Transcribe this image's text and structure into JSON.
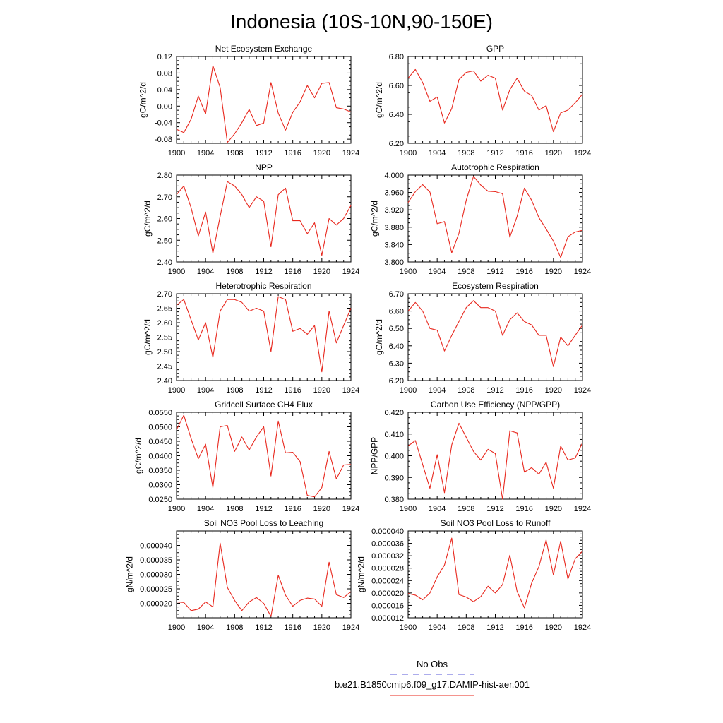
{
  "title": "Indonesia (10S-10N,90-150E)",
  "legend": {
    "obs_label": "No Obs",
    "obs_color": "#5a5ad8",
    "model_label": "b.e21.B1850cmip6.f09_g17.DAMIP-hist-aer.001",
    "model_color": "#e8281e"
  },
  "chart_data": [
    {
      "type": "line",
      "title": "Net Ecosystem Exchange",
      "ylabel": "gC/m^2/d",
      "xlim": [
        1900,
        1924
      ],
      "xticks": [
        "1900",
        "1904",
        "1908",
        "1912",
        "1916",
        "1920",
        "1924"
      ],
      "ylim": [
        -0.09,
        0.12
      ],
      "yticks": [
        "-0.08",
        "-0.04",
        "0.00",
        "0.04",
        "0.08",
        "0.12"
      ],
      "x": [
        1900,
        1901,
        1902,
        1903,
        1904,
        1905,
        1906,
        1907,
        1908,
        1909,
        1910,
        1911,
        1912,
        1913,
        1914,
        1915,
        1916,
        1917,
        1918,
        1919,
        1920,
        1921,
        1922,
        1923,
        1924
      ],
      "values": [
        -0.056,
        -0.064,
        -0.032,
        0.024,
        -0.019,
        0.098,
        0.045,
        -0.088,
        -0.067,
        -0.04,
        -0.008,
        -0.047,
        -0.041,
        0.057,
        -0.017,
        -0.058,
        -0.015,
        0.01,
        0.05,
        0.02,
        0.055,
        0.057,
        -0.004,
        -0.007,
        -0.014
      ],
      "series_name": "b.e21.B1850cmip6.f09_g17.DAMIP-hist-aer.001"
    },
    {
      "type": "line",
      "title": "GPP",
      "ylabel": "gC/m^2/d",
      "xlim": [
        1900,
        1924
      ],
      "xticks": [
        "1900",
        "1904",
        "1908",
        "1912",
        "1916",
        "1920",
        "1924"
      ],
      "ylim": [
        6.2,
        6.8
      ],
      "yticks": [
        "6.20",
        "6.40",
        "6.60",
        "6.80"
      ],
      "x": [
        1900,
        1901,
        1902,
        1903,
        1904,
        1905,
        1906,
        1907,
        1908,
        1909,
        1910,
        1911,
        1912,
        1913,
        1914,
        1915,
        1916,
        1917,
        1918,
        1919,
        1920,
        1921,
        1922,
        1923,
        1924
      ],
      "values": [
        6.65,
        6.71,
        6.62,
        6.49,
        6.52,
        6.34,
        6.44,
        6.64,
        6.69,
        6.7,
        6.63,
        6.67,
        6.65,
        6.43,
        6.57,
        6.65,
        6.56,
        6.53,
        6.43,
        6.46,
        6.28,
        6.41,
        6.43,
        6.48,
        6.54
      ],
      "series_name": "b.e21.B1850cmip6.f09_g17.DAMIP-hist-aer.001"
    },
    {
      "type": "line",
      "title": "NPP",
      "ylabel": "gC/m^2/d",
      "xlim": [
        1900,
        1924
      ],
      "xticks": [
        "1900",
        "1904",
        "1908",
        "1912",
        "1916",
        "1920",
        "1924"
      ],
      "ylim": [
        2.4,
        2.8
      ],
      "yticks": [
        "2.40",
        "2.50",
        "2.60",
        "2.70",
        "2.80"
      ],
      "x": [
        1900,
        1901,
        1902,
        1903,
        1904,
        1905,
        1906,
        1907,
        1908,
        1909,
        1910,
        1911,
        1912,
        1913,
        1914,
        1915,
        1916,
        1917,
        1918,
        1919,
        1920,
        1921,
        1922,
        1923,
        1924
      ],
      "values": [
        2.71,
        2.75,
        2.65,
        2.52,
        2.63,
        2.44,
        2.61,
        2.77,
        2.75,
        2.71,
        2.65,
        2.7,
        2.68,
        2.47,
        2.71,
        2.74,
        2.59,
        2.59,
        2.53,
        2.58,
        2.43,
        2.6,
        2.57,
        2.6,
        2.66
      ],
      "series_name": "b.e21.B1850cmip6.f09_g17.DAMIP-hist-aer.001"
    },
    {
      "type": "line",
      "title": "Autotrophic Respiration",
      "ylabel": "gC/m^2/d",
      "xlim": [
        1900,
        1924
      ],
      "xticks": [
        "1900",
        "1904",
        "1908",
        "1912",
        "1916",
        "1920",
        "1924"
      ],
      "ylim": [
        3.8,
        4.0
      ],
      "yticks": [
        "3.800",
        "3.840",
        "3.880",
        "3.920",
        "3.960",
        "4.000"
      ],
      "x": [
        1900,
        1901,
        1902,
        1903,
        1904,
        1905,
        1906,
        1907,
        1908,
        1909,
        1910,
        1911,
        1912,
        1913,
        1914,
        1915,
        1916,
        1917,
        1918,
        1919,
        1920,
        1921,
        1922,
        1923,
        1924
      ],
      "values": [
        3.937,
        3.962,
        3.978,
        3.961,
        3.888,
        3.893,
        3.821,
        3.866,
        3.942,
        3.997,
        3.977,
        3.963,
        3.962,
        3.957,
        3.857,
        3.905,
        3.97,
        3.942,
        3.902,
        3.876,
        3.848,
        3.81,
        3.858,
        3.869,
        3.873
      ],
      "series_name": "b.e21.B1850cmip6.f09_g17.DAMIP-hist-aer.001"
    },
    {
      "type": "line",
      "title": "Heterotrophic Respiration",
      "ylabel": "gC/m^2/d",
      "xlim": [
        1900,
        1924
      ],
      "xticks": [
        "1900",
        "1904",
        "1908",
        "1912",
        "1916",
        "1920",
        "1924"
      ],
      "ylim": [
        2.4,
        2.7
      ],
      "yticks": [
        "2.40",
        "2.45",
        "2.50",
        "2.55",
        "2.60",
        "2.65",
        "2.70"
      ],
      "x": [
        1900,
        1901,
        1902,
        1903,
        1904,
        1905,
        1906,
        1907,
        1908,
        1909,
        1910,
        1911,
        1912,
        1913,
        1914,
        1915,
        1916,
        1917,
        1918,
        1919,
        1920,
        1921,
        1922,
        1923,
        1924
      ],
      "values": [
        2.66,
        2.68,
        2.61,
        2.54,
        2.6,
        2.48,
        2.64,
        2.68,
        2.68,
        2.67,
        2.64,
        2.65,
        2.64,
        2.5,
        2.69,
        2.68,
        2.57,
        2.58,
        2.56,
        2.59,
        2.43,
        2.64,
        2.53,
        2.59,
        2.65
      ],
      "series_name": "b.e21.B1850cmip6.f09_g17.DAMIP-hist-aer.001"
    },
    {
      "type": "line",
      "title": "Ecosystem Respiration",
      "ylabel": "gC/m^2/d",
      "xlim": [
        1900,
        1924
      ],
      "xticks": [
        "1900",
        "1904",
        "1908",
        "1912",
        "1916",
        "1920",
        "1924"
      ],
      "ylim": [
        6.2,
        6.7
      ],
      "yticks": [
        "6.20",
        "6.30",
        "6.40",
        "6.50",
        "6.60",
        "6.70"
      ],
      "x": [
        1900,
        1901,
        1902,
        1903,
        1904,
        1905,
        1906,
        1907,
        1908,
        1909,
        1910,
        1911,
        1912,
        1913,
        1914,
        1915,
        1916,
        1917,
        1918,
        1919,
        1920,
        1921,
        1922,
        1923,
        1924
      ],
      "values": [
        6.6,
        6.65,
        6.6,
        6.5,
        6.49,
        6.37,
        6.46,
        6.54,
        6.62,
        6.66,
        6.62,
        6.62,
        6.6,
        6.46,
        6.55,
        6.59,
        6.54,
        6.52,
        6.46,
        6.46,
        6.28,
        6.45,
        6.4,
        6.46,
        6.52
      ],
      "series_name": "b.e21.B1850cmip6.f09_g17.DAMIP-hist-aer.001"
    },
    {
      "type": "line",
      "title": "Gridcell Surface CH4 Flux",
      "ylabel": "gC/m^2/d",
      "xlim": [
        1900,
        1924
      ],
      "xticks": [
        "1900",
        "1904",
        "1908",
        "1912",
        "1916",
        "1920",
        "1924"
      ],
      "ylim": [
        0.025,
        0.055
      ],
      "yticks": [
        "0.0250",
        "0.0300",
        "0.0350",
        "0.0400",
        "0.0450",
        "0.0500",
        "0.0550"
      ],
      "x": [
        1900,
        1901,
        1902,
        1903,
        1904,
        1905,
        1906,
        1907,
        1908,
        1909,
        1910,
        1911,
        1912,
        1913,
        1914,
        1915,
        1916,
        1917,
        1918,
        1919,
        1920,
        1921,
        1922,
        1923,
        1924
      ],
      "values": [
        0.049,
        0.054,
        0.046,
        0.039,
        0.044,
        0.029,
        0.05,
        0.0505,
        0.0415,
        0.0465,
        0.042,
        0.0465,
        0.05,
        0.033,
        0.052,
        0.041,
        0.0412,
        0.038,
        0.0263,
        0.0258,
        0.029,
        0.0415,
        0.032,
        0.0368,
        0.037
      ],
      "series_name": "b.e21.B1850cmip6.f09_g17.DAMIP-hist-aer.001"
    },
    {
      "type": "line",
      "title": "Carbon Use Efficiency (NPP/GPP)",
      "ylabel": "NPP/GPP",
      "xlim": [
        1900,
        1924
      ],
      "xticks": [
        "1900",
        "1904",
        "1908",
        "1912",
        "1916",
        "1920",
        "1924"
      ],
      "ylim": [
        0.38,
        0.42
      ],
      "yticks": [
        "0.380",
        "0.390",
        "0.400",
        "0.410",
        "0.420"
      ],
      "x": [
        1900,
        1901,
        1902,
        1903,
        1904,
        1905,
        1906,
        1907,
        1908,
        1909,
        1910,
        1911,
        1912,
        1913,
        1914,
        1915,
        1916,
        1917,
        1918,
        1919,
        1920,
        1921,
        1922,
        1923,
        1924
      ],
      "values": [
        0.4045,
        0.407,
        0.396,
        0.385,
        0.4005,
        0.383,
        0.405,
        0.415,
        0.4085,
        0.402,
        0.398,
        0.403,
        0.401,
        0.38,
        0.4115,
        0.4105,
        0.3925,
        0.3945,
        0.3915,
        0.397,
        0.385,
        0.4045,
        0.398,
        0.399,
        0.406
      ],
      "series_name": "b.e21.B1850cmip6.f09_g17.DAMIP-hist-aer.001"
    },
    {
      "type": "line",
      "title": "Soil NO3 Pool Loss to Leaching",
      "ylabel": "gN/m^2/d",
      "xlim": [
        1900,
        1924
      ],
      "xticks": [
        "1900",
        "1904",
        "1908",
        "1912",
        "1916",
        "1920",
        "1924"
      ],
      "ylim": [
        1.5e-05,
        4.5e-05
      ],
      "yticks": [
        "0.000020",
        "0.000025",
        "0.000030",
        "0.000035",
        "0.000040"
      ],
      "x": [
        1900,
        1901,
        1902,
        1903,
        1904,
        1905,
        1906,
        1907,
        1908,
        1909,
        1910,
        1911,
        1912,
        1913,
        1914,
        1915,
        1916,
        1917,
        1918,
        1919,
        1920,
        1921,
        1922,
        1923,
        1924
      ],
      "values": [
        2.05e-05,
        2.03e-05,
        1.75e-05,
        1.8e-05,
        2.05e-05,
        1.88e-05,
        4.08e-05,
        2.55e-05,
        2.1e-05,
        1.75e-05,
        2.05e-05,
        2.2e-05,
        2e-05,
        1.55e-05,
        2.97e-05,
        2.28e-05,
        1.9e-05,
        2.1e-05,
        2.18e-05,
        2.15e-05,
        1.9e-05,
        3.42e-05,
        2.3e-05,
        2.2e-05,
        2.4e-05
      ],
      "series_name": "b.e21.B1850cmip6.f09_g17.DAMIP-hist-aer.001"
    },
    {
      "type": "line",
      "title": "Soil NO3 Pool Loss to Runoff",
      "ylabel": "gN/m^2/d",
      "xlim": [
        1900,
        1924
      ],
      "xticks": [
        "1900",
        "1904",
        "1908",
        "1912",
        "1916",
        "1920",
        "1924"
      ],
      "ylim": [
        1.2e-05,
        4e-05
      ],
      "yticks": [
        "0.000012",
        "0.000016",
        "0.000020",
        "0.000024",
        "0.000028",
        "0.000032",
        "0.000036",
        "0.000040"
      ],
      "x": [
        1900,
        1901,
        1902,
        1903,
        1904,
        1905,
        1906,
        1907,
        1908,
        1909,
        1910,
        1911,
        1912,
        1913,
        1914,
        1915,
        1916,
        1917,
        1918,
        1919,
        1920,
        1921,
        1922,
        1923,
        1924
      ],
      "values": [
        1.98e-05,
        1.93e-05,
        1.78e-05,
        2e-05,
        2.52e-05,
        2.9e-05,
        3.77e-05,
        1.95e-05,
        1.87e-05,
        1.72e-05,
        1.88e-05,
        2.22e-05,
        2e-05,
        2.27e-05,
        3.22e-05,
        2.05e-05,
        1.52e-05,
        2.32e-05,
        2.85e-05,
        3.71e-05,
        2.58e-05,
        3.67e-05,
        2.45e-05,
        3.1e-05,
        3.35e-05
      ],
      "series_name": "b.e21.B1850cmip6.f09_g17.DAMIP-hist-aer.001"
    }
  ]
}
